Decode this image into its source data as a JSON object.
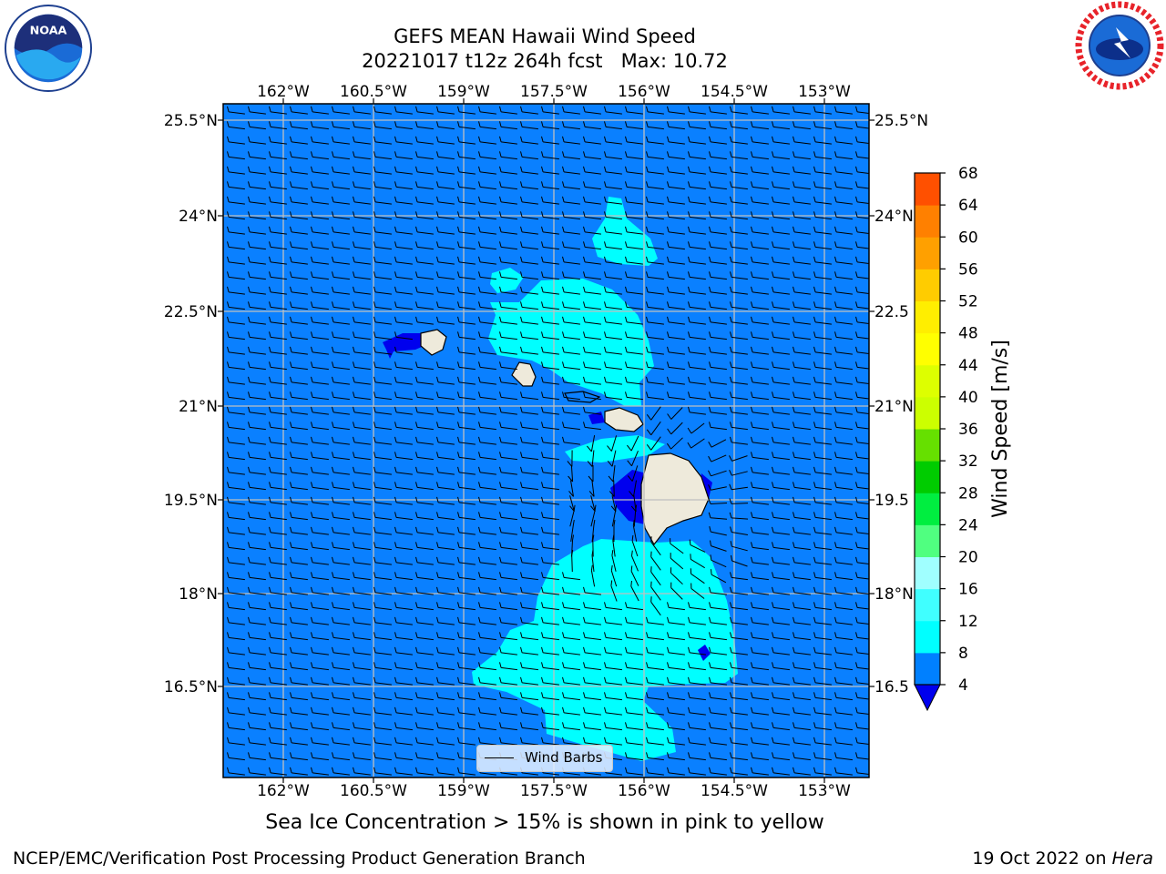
{
  "title": {
    "line1": "GEFS MEAN Hawaii Wind Speed",
    "line2": "20221017 t12z 264h fcst   Max: 10.72"
  },
  "map": {
    "lon_labels": [
      "162°W",
      "160.5°W",
      "159°W",
      "157.5°W",
      "156°W",
      "154.5°W",
      "153°W"
    ],
    "lat_labels": [
      "25.5°N",
      "24°N",
      "22.5°N",
      "21°N",
      "19.5°N",
      "18°N",
      "16.5°N"
    ],
    "lat_labels_right": [
      "25.5°N",
      "24°N",
      "22.5",
      "21°N",
      "19.5",
      "18°N",
      "16.5"
    ],
    "lon_range": [
      -163,
      -152.2
    ],
    "lat_range": [
      15,
      25.8
    ],
    "ocean_color": "#0a80ff",
    "light_speed_color": "#00ffff",
    "calm_color": "#0000ee",
    "land_color": "#eeeadb",
    "legend_label": "Wind Barbs"
  },
  "colorbar": {
    "label": "Wind Speed [m/s]",
    "ticks": [
      "4",
      "8",
      "12",
      "16",
      "20",
      "24",
      "28",
      "32",
      "36",
      "40",
      "44",
      "48",
      "52",
      "56",
      "60",
      "64",
      "68"
    ],
    "colors": [
      "#0080ff",
      "#00ffff",
      "#40ffff",
      "#a0ffff",
      "#50ff80",
      "#00ee40",
      "#00cc00",
      "#66e000",
      "#ccff00",
      "#ddff00",
      "#ffff00",
      "#ffee00",
      "#ffcc00",
      "#ffa000",
      "#ff8000",
      "#ff5000",
      "#ff2000",
      "#ff0000"
    ],
    "under_color": "#0000ee"
  },
  "logos": {
    "noaa_text": "NOAA",
    "nws_text": "NATIONAL WEATHER SERVICE"
  },
  "subtitle": "Sea Ice Concentration > 15% is shown in pink to yellow",
  "footer": {
    "left": "NCEP/EMC/Verification Post Processing Product Generation Branch",
    "right_prefix": "19 Oct 2022 on ",
    "right_host": "Hera"
  }
}
